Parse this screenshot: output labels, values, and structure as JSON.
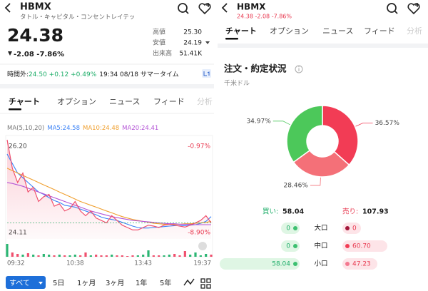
{
  "left": {
    "header": {
      "symbol": "HBMX",
      "name": "タトル・キャピタル・コンセントレイテッ"
    },
    "quote": {
      "price": "24.38",
      "change": "-2.08 -7.86%",
      "stats": [
        {
          "label": "高値",
          "value": "25.30"
        },
        {
          "label": "安値",
          "value": "24.19"
        },
        {
          "label": "出来高",
          "value": "51.41K"
        }
      ]
    },
    "after_hours": {
      "label": "時間外:",
      "change": "24.50 +0.12 +0.49%",
      "time": "19:34 08/18 サマータイム"
    },
    "tabs": [
      "チャート",
      "オプション",
      "ニュース",
      "フィード",
      "分析"
    ],
    "chart_data": {
      "type": "line",
      "legend_title": "MA(5,10,20)",
      "x_labels": [
        "09:32",
        "10:38",
        "13:43",
        "19:37"
      ],
      "ylim": [
        24.11,
        26.2
      ],
      "yticks": [
        {
          "value": 26.2,
          "label": "26.20"
        },
        {
          "value": 24.11,
          "label": "24.11"
        }
      ],
      "y2lim": [
        -8.9,
        -0.97
      ],
      "y2ticks": [
        {
          "value": -0.97,
          "label": "-0.97%"
        },
        {
          "value": -8.9,
          "label": "-8.90%"
        }
      ],
      "color": "#f0506e",
      "values": [
        26.2,
        25.6,
        25.3,
        25.5,
        25.1,
        25.2,
        24.9,
        25.0,
        25.05,
        24.8,
        24.85,
        24.7,
        24.75,
        24.9,
        24.7,
        24.6,
        24.7,
        24.55,
        24.5,
        24.45,
        24.6,
        24.5,
        24.4,
        24.35,
        24.3,
        24.3,
        24.35,
        24.4,
        24.38,
        24.35,
        24.4,
        24.42,
        24.4,
        24.38,
        24.36,
        24.4,
        24.45,
        24.5,
        24.6,
        24.45
      ],
      "series": [
        {
          "name": "MA5:24.58",
          "color": "#3b82f6",
          "values": [
            25.9,
            25.7,
            25.5,
            25.4,
            25.3,
            25.2,
            25.1,
            25.05,
            24.98,
            24.92,
            24.88,
            24.82,
            24.8,
            24.78,
            24.74,
            24.7,
            24.66,
            24.62,
            24.57,
            24.54,
            24.52,
            24.5,
            24.46,
            24.42,
            24.38,
            24.35,
            24.34,
            24.34,
            24.35,
            24.36,
            24.37,
            24.38,
            24.39,
            24.39,
            24.39,
            24.4,
            24.41,
            24.44,
            24.48,
            24.58
          ]
        },
        {
          "name": "MA10:24.48",
          "color": "#f0a030",
          "values": [
            25.6,
            25.55,
            25.5,
            25.45,
            25.4,
            25.35,
            25.3,
            25.25,
            25.2,
            25.15,
            25.1,
            25.05,
            25.0,
            24.95,
            24.9,
            24.86,
            24.82,
            24.78,
            24.74,
            24.7,
            24.66,
            24.62,
            24.58,
            24.55,
            24.52,
            24.5,
            24.48,
            24.46,
            24.44,
            24.43,
            24.42,
            24.42,
            24.42,
            24.42,
            24.43,
            24.43,
            24.44,
            24.45,
            24.46,
            24.48
          ]
        },
        {
          "name": "MA20:24.41",
          "color": "#b455d6",
          "values": [
            25.3,
            25.28,
            25.25,
            25.22,
            25.18,
            25.14,
            25.1,
            25.06,
            25.02,
            24.98,
            24.94,
            24.9,
            24.86,
            24.82,
            24.78,
            24.74,
            24.7,
            24.67,
            24.64,
            24.61,
            24.58,
            24.56,
            24.54,
            24.52,
            24.5,
            24.49,
            24.48,
            24.47,
            24.46,
            24.45,
            24.44,
            24.43,
            24.43,
            24.42,
            24.42,
            24.42,
            24.41,
            24.41,
            24.41,
            24.41
          ]
        }
      ],
      "volume": [
        18,
        6,
        4,
        3,
        5,
        3,
        2,
        4,
        3,
        2,
        3,
        2,
        2,
        3,
        2,
        6,
        2,
        3,
        2,
        2,
        3,
        2,
        2,
        1,
        2,
        2,
        3,
        9,
        2,
        2,
        2,
        3,
        4,
        2,
        8,
        3,
        6,
        2,
        4,
        3
      ]
    },
    "ranges": [
      "すべて",
      "5日",
      "1ヶ月",
      "3ヶ月",
      "1年",
      "5年"
    ]
  },
  "right": {
    "header": {
      "symbol": "HBMX",
      "quote": "24.38 -2.08 -7.86%"
    },
    "tabs": [
      "チャート",
      "オプション",
      "ニュース",
      "フィード",
      "分析"
    ],
    "title": "注文・約定状況",
    "unit": "千米ドル",
    "chart_data": {
      "type": "pie",
      "values": [
        36.57,
        28.46,
        34.97
      ],
      "value_labels": [
        "36.57%",
        "28.46%",
        "34.97%"
      ],
      "colors": [
        "#f23c55",
        "#f47078",
        "#4cc85a"
      ]
    },
    "summary": {
      "buy_label": "買い:",
      "buy_total": 58.04,
      "sell_label": "売り:",
      "sell_total": 107.93
    },
    "rows": {
      "labels": [
        "大口",
        "中口",
        "小口"
      ],
      "buy_values": [
        0,
        0,
        58.04
      ],
      "sell_values": [
        0,
        60.7,
        47.23
      ],
      "sell_value_labels": [
        "0",
        "60.70",
        "47.23"
      ],
      "sell_dot_colors": [
        "#a3163a",
        "#f23c55",
        "#f47890"
      ]
    }
  }
}
